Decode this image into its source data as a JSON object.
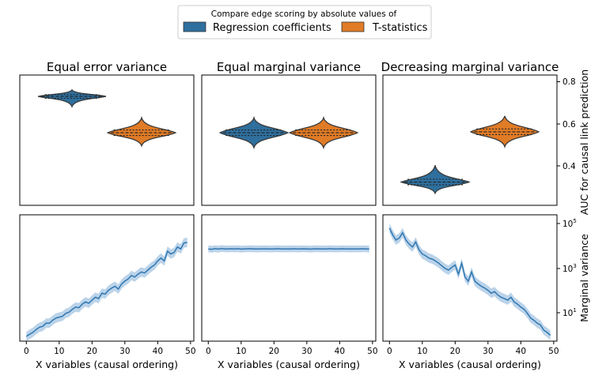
{
  "legend": {
    "title": "Compare edge scoring by absolute values of",
    "entries": [
      {
        "label": "Regression coefficients",
        "color": "#2e6f9e"
      },
      {
        "label": "T-statistics",
        "color": "#e07b26"
      }
    ]
  },
  "colors": {
    "blue": "#2e6f9e",
    "orange": "#e07b26",
    "line_blue": "#2f77b1",
    "band_blue": "#aac8e3"
  },
  "chart_data": [
    {
      "type": "violin",
      "title": "Equal error variance",
      "ylabel": "AUC for causal link prediction",
      "ylim": [
        0.18,
        0.88
      ],
      "yticks": [
        "0.4",
        "0.6",
        "0.8"
      ],
      "violins": [
        {
          "name": "Regression coefficients",
          "center": 0.765,
          "min": 0.71,
          "max": 0.8,
          "q1": 0.755,
          "median": 0.765,
          "q3": 0.775
        },
        {
          "name": "T-statistics",
          "center": 0.57,
          "min": 0.5,
          "max": 0.65,
          "q1": 0.555,
          "median": 0.57,
          "q3": 0.585
        }
      ]
    },
    {
      "type": "violin",
      "title": "Equal marginal variance",
      "ylim": [
        0.18,
        0.88
      ],
      "violins": [
        {
          "name": "Regression coefficients",
          "center": 0.57,
          "min": 0.49,
          "max": 0.65,
          "q1": 0.555,
          "median": 0.57,
          "q3": 0.585
        },
        {
          "name": "T-statistics",
          "center": 0.57,
          "min": 0.49,
          "max": 0.65,
          "q1": 0.555,
          "median": 0.57,
          "q3": 0.585
        }
      ]
    },
    {
      "type": "violin",
      "title": "Decreasing marginal variance",
      "ylim": [
        0.18,
        0.88
      ],
      "violins": [
        {
          "name": "Regression coefficients",
          "center": 0.305,
          "min": 0.245,
          "max": 0.395,
          "q1": 0.29,
          "median": 0.305,
          "q3": 0.32
        },
        {
          "name": "T-statistics",
          "center": 0.575,
          "min": 0.495,
          "max": 0.66,
          "q1": 0.56,
          "median": 0.575,
          "q3": 0.59
        }
      ]
    },
    {
      "type": "line",
      "xlabel": "X variables (causal ordering)",
      "ylabel": "Marginal variance",
      "yscale": "log",
      "ylim": [
        0.5,
        150000
      ],
      "yticks": [
        {
          "value": 10,
          "base": "10",
          "exp": "1"
        },
        {
          "value": 1000,
          "base": "10",
          "exp": "3"
        },
        {
          "value": 100000,
          "base": "10",
          "exp": "5"
        }
      ],
      "xlim": [
        -2,
        51
      ],
      "xticks": [
        "0",
        "10",
        "20",
        "30",
        "40",
        "50"
      ],
      "x": [
        0,
        1,
        2,
        3,
        4,
        5,
        6,
        7,
        8,
        9,
        10,
        11,
        12,
        13,
        14,
        15,
        16,
        17,
        18,
        19,
        20,
        21,
        22,
        23,
        24,
        25,
        26,
        27,
        28,
        29,
        30,
        31,
        32,
        33,
        34,
        35,
        36,
        37,
        38,
        39,
        40,
        41,
        42,
        43,
        44,
        45,
        46,
        47,
        48,
        49
      ],
      "y": [
        0.8,
        1,
        1.2,
        1.6,
        2,
        2.2,
        3,
        3,
        4,
        5,
        5.5,
        6,
        8,
        9,
        12,
        15,
        14,
        20,
        25,
        22,
        30,
        40,
        35,
        60,
        55,
        80,
        100,
        120,
        90,
        150,
        200,
        250,
        350,
        300,
        400,
        500,
        450,
        600,
        800,
        1000,
        1500,
        2000,
        1500,
        4000,
        3000,
        3500,
        6000,
        5000,
        9000,
        9500
      ],
      "band_ratio": 1.6
    },
    {
      "type": "line",
      "xlabel": "X variables (causal ordering)",
      "yscale": "log",
      "ylim": [
        0.5,
        150000
      ],
      "xlim": [
        -2,
        51
      ],
      "xticks": [
        "0",
        "10",
        "20",
        "30",
        "40",
        "50"
      ],
      "x": [
        0,
        1,
        2,
        3,
        4,
        5,
        6,
        7,
        8,
        9,
        10,
        11,
        12,
        13,
        14,
        15,
        16,
        17,
        18,
        19,
        20,
        21,
        22,
        23,
        24,
        25,
        26,
        27,
        28,
        29,
        30,
        31,
        32,
        33,
        34,
        35,
        36,
        37,
        38,
        39,
        40,
        41,
        42,
        43,
        44,
        45,
        46,
        47,
        48,
        49
      ],
      "y": [
        5000,
        4800,
        5100,
        4900,
        5200,
        5000,
        4950,
        5050,
        5000,
        5100,
        4900,
        5000,
        5050,
        5100,
        5000,
        4950,
        5000,
        5050,
        5000,
        4950,
        5000,
        5100,
        5000,
        4950,
        5000,
        5000,
        5050,
        4950,
        5000,
        5050,
        5000,
        4900,
        5000,
        5050,
        5000,
        4950,
        5000,
        5100,
        5000,
        4950,
        5000,
        5050,
        5000,
        4950,
        5000,
        5000,
        4950,
        5050,
        5000,
        4900
      ],
      "band_ratio": 1.4
    },
    {
      "type": "line",
      "xlabel": "X variables (causal ordering)",
      "yscale": "log",
      "ylim": [
        0.5,
        150000
      ],
      "xlim": [
        -2,
        51
      ],
      "xticks": [
        "0",
        "10",
        "20",
        "30",
        "40",
        "50"
      ],
      "x": [
        0,
        1,
        2,
        3,
        4,
        5,
        6,
        7,
        8,
        9,
        10,
        11,
        12,
        13,
        14,
        15,
        16,
        17,
        18,
        19,
        20,
        21,
        22,
        23,
        24,
        25,
        26,
        27,
        28,
        29,
        30,
        31,
        32,
        33,
        34,
        35,
        36,
        37,
        38,
        39,
        40,
        41,
        42,
        43,
        44,
        45,
        46,
        47,
        48,
        49
      ],
      "y": [
        40000,
        20000,
        12000,
        15000,
        25000,
        12000,
        8000,
        6000,
        10000,
        4500,
        3000,
        2500,
        2000,
        1800,
        1500,
        1200,
        900,
        700,
        600,
        800,
        1000,
        400,
        1200,
        300,
        200,
        500,
        200,
        150,
        120,
        100,
        80,
        60,
        70,
        50,
        40,
        35,
        30,
        40,
        25,
        20,
        15,
        12,
        8,
        5,
        4,
        3,
        2.5,
        1.5,
        1.2,
        0.9
      ],
      "band_ratio": 1.6
    }
  ]
}
